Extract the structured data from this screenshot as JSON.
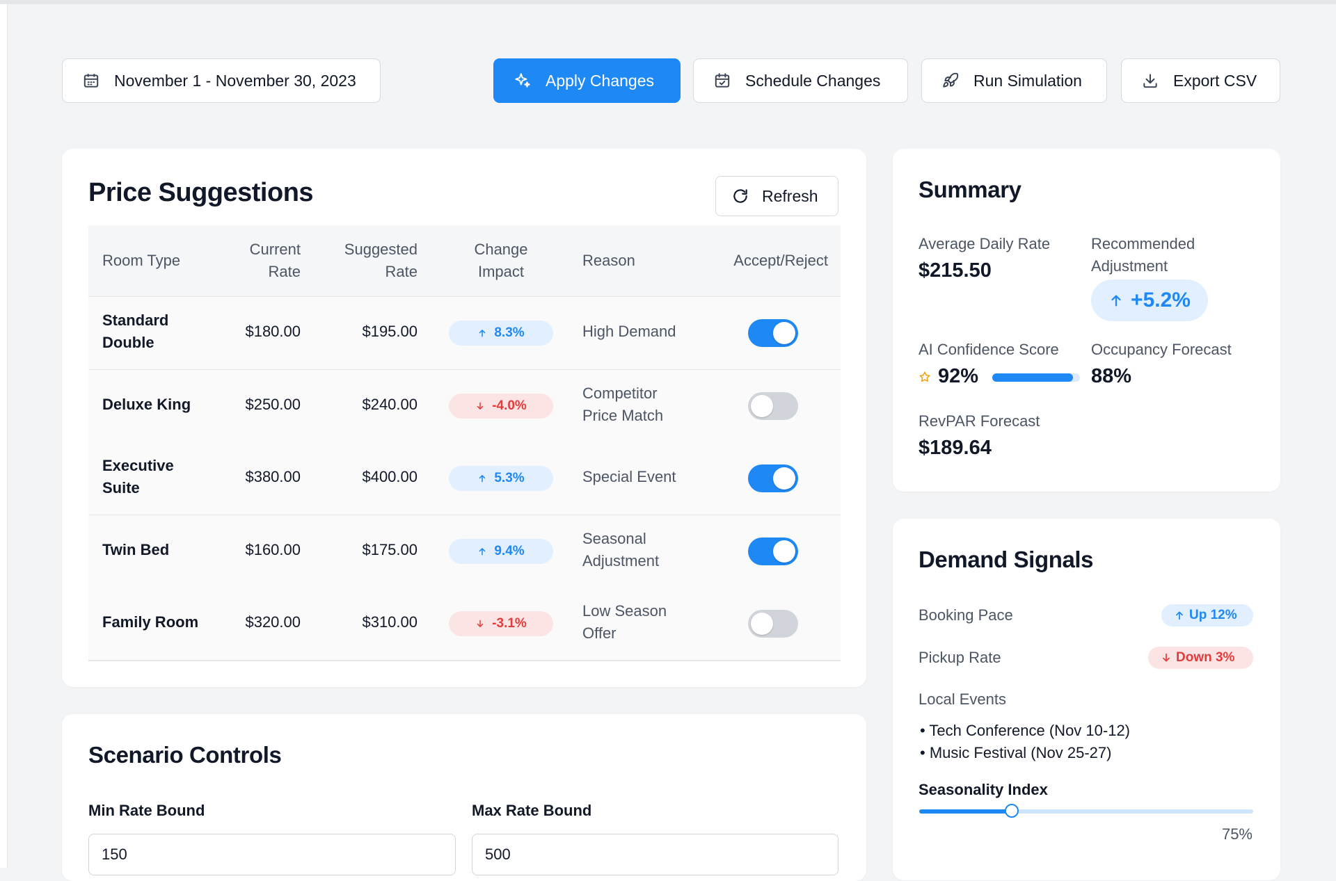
{
  "toolbar": {
    "date_range": "November 1 - November 30, 2023",
    "apply": "Apply Changes",
    "schedule": "Schedule Changes",
    "simulate": "Run Simulation",
    "export": "Export CSV"
  },
  "price_suggestions": {
    "title": "Price Suggestions",
    "refresh": "Refresh",
    "headers": {
      "room_type": "Room Type",
      "current_rate": [
        "Current",
        "Rate"
      ],
      "suggested_rate": [
        "Suggested",
        "Rate"
      ],
      "change_impact": [
        "Change",
        "Impact"
      ],
      "reason": "Reason",
      "accept": "Accept/Reject"
    },
    "rows": [
      {
        "room": [
          "Standard",
          "Double"
        ],
        "current": "$180.00",
        "suggested": "$195.00",
        "impact": "8.3%",
        "direction": "up",
        "reason": [
          "High Demand"
        ],
        "accepted": true
      },
      {
        "room": [
          "Deluxe King"
        ],
        "current": "$250.00",
        "suggested": "$240.00",
        "impact": "-4.0%",
        "direction": "down",
        "reason": [
          "Competitor",
          "Price Match"
        ],
        "accepted": false
      },
      {
        "room": [
          "Executive",
          "Suite"
        ],
        "current": "$380.00",
        "suggested": "$400.00",
        "impact": "5.3%",
        "direction": "up",
        "reason": [
          "Special Event"
        ],
        "accepted": true
      },
      {
        "room": [
          "Twin Bed"
        ],
        "current": "$160.00",
        "suggested": "$175.00",
        "impact": "9.4%",
        "direction": "up",
        "reason": [
          "Seasonal",
          "Adjustment"
        ],
        "accepted": true
      },
      {
        "room": [
          "Family Room"
        ],
        "current": "$320.00",
        "suggested": "$310.00",
        "impact": "-3.1%",
        "direction": "down",
        "reason": [
          "Low Season",
          "Offer"
        ],
        "accepted": false
      }
    ]
  },
  "summary": {
    "title": "Summary",
    "adr_label": "Average Daily Rate",
    "adr_value": "$215.50",
    "rec_label": [
      "Recommended",
      "Adjustment"
    ],
    "rec_value": "+5.2%",
    "conf_label": "AI Confidence Score",
    "conf_value": "92%",
    "conf_fraction": 0.92,
    "occ_label": "Occupancy Forecast",
    "occ_value": "88%",
    "revpar_label": "RevPAR Forecast",
    "revpar_value": "$189.64"
  },
  "demand": {
    "title": "Demand Signals",
    "booking_label": "Booking Pace",
    "booking_value": "Up 12%",
    "pickup_label": "Pickup Rate",
    "pickup_value": "Down 3%",
    "events_label": "Local Events",
    "events": [
      "Tech Conference (Nov 10-12)",
      "Music Festival (Nov 25-27)"
    ],
    "season_label": "Seasonality Index",
    "season_value": "75%",
    "season_fraction": 0.75
  },
  "scenario": {
    "title": "Scenario Controls",
    "min_label": "Min Rate Bound",
    "min_value": "150",
    "max_label": "Max Rate Bound",
    "max_value": "500"
  },
  "colors": {
    "accent": "#1e88f5",
    "negative": "#e33c3c",
    "background": "#f3f4f6"
  }
}
